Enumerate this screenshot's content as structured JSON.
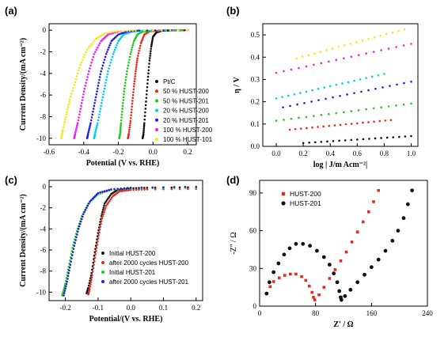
{
  "chart_data": [
    {
      "panel_label": "(a)",
      "type": "scatter",
      "xlabel": "Potential (V vs. RHE)",
      "ylabel": "Current Density/(mA cm⁻²)",
      "xlim": [
        -0.6,
        0.25
      ],
      "ylim": [
        -10.6,
        0.6
      ],
      "xticks": [
        "-0.6",
        "-0.4",
        "-0.2",
        "0.0",
        "0.2"
      ],
      "yticks": [
        "0",
        "-2",
        "-4",
        "-6",
        "-8",
        "-10"
      ],
      "legend": "right",
      "series": [
        {
          "name": "Pt/C",
          "color": "#111111",
          "values": [
            [
              0.2,
              0.0
            ],
            [
              0.1,
              -0.02
            ],
            [
              0.05,
              -0.05
            ],
            [
              0.02,
              -0.2
            ],
            [
              0.0,
              -0.6
            ],
            [
              -0.01,
              -1.5
            ],
            [
              -0.02,
              -2.8
            ],
            [
              -0.03,
              -4.6
            ],
            [
              -0.04,
              -6.6
            ],
            [
              -0.05,
              -8.6
            ],
            [
              -0.055,
              -9.6
            ],
            [
              -0.06,
              -10.0
            ]
          ]
        },
        {
          "name": "50 % HUST-200",
          "color": "#e8281e",
          "values": [
            [
              0.2,
              0.0
            ],
            [
              0.05,
              -0.03
            ],
            [
              -0.02,
              -0.1
            ],
            [
              -0.05,
              -0.4
            ],
            [
              -0.07,
              -1.2
            ],
            [
              -0.09,
              -2.6
            ],
            [
              -0.1,
              -3.8
            ],
            [
              -0.11,
              -5.2
            ],
            [
              -0.12,
              -6.8
            ],
            [
              -0.13,
              -8.4
            ],
            [
              -0.14,
              -9.6
            ],
            [
              -0.145,
              -10.0
            ]
          ]
        },
        {
          "name": "50 % HUST-201",
          "color": "#1ec81e",
          "values": [
            [
              0.2,
              0.0
            ],
            [
              0.0,
              -0.03
            ],
            [
              -0.06,
              -0.12
            ],
            [
              -0.09,
              -0.4
            ],
            [
              -0.11,
              -1.0
            ],
            [
              -0.13,
              -2.2
            ],
            [
              -0.15,
              -3.8
            ],
            [
              -0.165,
              -5.4
            ],
            [
              -0.175,
              -7.0
            ],
            [
              -0.185,
              -8.6
            ],
            [
              -0.19,
              -9.6
            ],
            [
              -0.195,
              -10.0
            ]
          ]
        },
        {
          "name": "20 % HUST-200",
          "color": "#00d0e6",
          "values": [
            [
              0.2,
              0.0
            ],
            [
              -0.05,
              -0.03
            ],
            [
              -0.12,
              -0.12
            ],
            [
              -0.17,
              -0.4
            ],
            [
              -0.2,
              -1.0
            ],
            [
              -0.23,
              -2.2
            ],
            [
              -0.26,
              -3.8
            ],
            [
              -0.28,
              -5.4
            ],
            [
              -0.3,
              -7.0
            ],
            [
              -0.32,
              -8.6
            ],
            [
              -0.335,
              -9.6
            ],
            [
              -0.34,
              -10.0
            ]
          ]
        },
        {
          "name": "20 % HUST-201",
          "color": "#2020d8",
          "values": [
            [
              0.2,
              0.0
            ],
            [
              -0.08,
              -0.03
            ],
            [
              -0.15,
              -0.12
            ],
            [
              -0.2,
              -0.4
            ],
            [
              -0.24,
              -1.0
            ],
            [
              -0.27,
              -2.2
            ],
            [
              -0.3,
              -3.8
            ],
            [
              -0.32,
              -5.4
            ],
            [
              -0.34,
              -7.0
            ],
            [
              -0.36,
              -8.6
            ],
            [
              -0.375,
              -9.6
            ],
            [
              -0.38,
              -10.0
            ]
          ]
        },
        {
          "name": "100 % HUST-200",
          "color": "#f020f0",
          "values": [
            [
              0.2,
              0.0
            ],
            [
              -0.1,
              -0.03
            ],
            [
              -0.2,
              -0.12
            ],
            [
              -0.26,
              -0.4
            ],
            [
              -0.3,
              -1.0
            ],
            [
              -0.34,
              -2.2
            ],
            [
              -0.37,
              -3.8
            ],
            [
              -0.395,
              -5.4
            ],
            [
              -0.415,
              -7.0
            ],
            [
              -0.435,
              -8.6
            ],
            [
              -0.45,
              -9.6
            ],
            [
              -0.455,
              -10.0
            ]
          ]
        },
        {
          "name": "100 % HUST-101",
          "color": "#f5e61e",
          "values": [
            [
              0.2,
              0.0
            ],
            [
              -0.1,
              -0.02
            ],
            [
              -0.2,
              -0.08
            ],
            [
              -0.28,
              -0.3
            ],
            [
              -0.33,
              -0.8
            ],
            [
              -0.38,
              -1.8
            ],
            [
              -0.42,
              -3.2
            ],
            [
              -0.45,
              -4.8
            ],
            [
              -0.48,
              -6.4
            ],
            [
              -0.5,
              -7.8
            ],
            [
              -0.52,
              -9.2
            ],
            [
              -0.53,
              -10.0
            ]
          ]
        }
      ]
    },
    {
      "panel_label": "(b)",
      "type": "scatter",
      "xlabel": "log | J/m Acm⁻²|",
      "ylabel": "η / V",
      "xlim": [
        -0.1,
        1.05
      ],
      "ylim": [
        0.0,
        0.55
      ],
      "xticks": [
        "0.0",
        "0.2",
        "0.4",
        "0.6",
        "0.8",
        "1.0"
      ],
      "yticks": [
        "0.0",
        "0.1",
        "0.2",
        "0.3",
        "0.4",
        "0.5"
      ],
      "series": [
        {
          "color": "#f5e61e",
          "values": [
            [
              0.15,
              0.395
            ],
            [
              0.95,
              0.525
            ]
          ]
        },
        {
          "color": "#f020f0",
          "values": [
            [
              0.0,
              0.33
            ],
            [
              1.0,
              0.46
            ]
          ]
        },
        {
          "color": "#00d0e6",
          "values": [
            [
              0.0,
              0.215
            ],
            [
              0.8,
              0.325
            ]
          ]
        },
        {
          "color": "#2020d8",
          "values": [
            [
              0.05,
              0.175
            ],
            [
              1.0,
              0.29
            ]
          ]
        },
        {
          "color": "#1ec81e",
          "values": [
            [
              0.0,
              0.115
            ],
            [
              1.0,
              0.192
            ]
          ]
        },
        {
          "color": "#e8281e",
          "values": [
            [
              0.1,
              0.075
            ],
            [
              0.85,
              0.118
            ]
          ]
        },
        {
          "color": "#111111",
          "values": [
            [
              0.2,
              0.015
            ],
            [
              1.0,
              0.046
            ]
          ]
        }
      ]
    },
    {
      "panel_label": "(c)",
      "type": "scatter",
      "xlabel": "Potential/(V vs. RHE)",
      "ylabel": "Current Density/(mA cm⁻²)",
      "xlim": [
        -0.25,
        0.22
      ],
      "ylim": [
        -10.8,
        0.6
      ],
      "xticks": [
        "-0.2",
        "-0.1",
        "0.0",
        "0.1",
        "0.2"
      ],
      "yticks": [
        "0",
        "-2",
        "-4",
        "-6",
        "-8",
        "-10"
      ],
      "legend": "bottom-right",
      "series": [
        {
          "name": "Initial HUST-200",
          "color": "#111111",
          "values": [
            [
              0.2,
              -0.05
            ],
            [
              0.05,
              -0.1
            ],
            [
              0.0,
              -0.15
            ],
            [
              -0.04,
              -0.3
            ],
            [
              -0.06,
              -0.7
            ],
            [
              -0.08,
              -1.6
            ],
            [
              -0.09,
              -2.8
            ],
            [
              -0.1,
              -4.4
            ],
            [
              -0.11,
              -6.2
            ],
            [
              -0.12,
              -8.2
            ],
            [
              -0.13,
              -9.6
            ],
            [
              -0.135,
              -10.1
            ]
          ]
        },
        {
          "name": "after 2000 cycles HUST-200",
          "color": "#e8281e",
          "values": [
            [
              0.2,
              -0.2
            ],
            [
              0.05,
              -0.25
            ],
            [
              0.0,
              -0.3
            ],
            [
              -0.035,
              -0.45
            ],
            [
              -0.055,
              -0.9
            ],
            [
              -0.075,
              -1.8
            ],
            [
              -0.088,
              -3.0
            ],
            [
              -0.098,
              -4.6
            ],
            [
              -0.108,
              -6.4
            ],
            [
              -0.118,
              -8.4
            ],
            [
              -0.126,
              -9.7
            ],
            [
              -0.13,
              -10.2
            ]
          ]
        },
        {
          "name": "Initial HUST-201",
          "color": "#1ec81e",
          "values": [
            [
              0.2,
              -0.1
            ],
            [
              0.0,
              -0.15
            ],
            [
              -0.06,
              -0.3
            ],
            [
              -0.1,
              -0.7
            ],
            [
              -0.13,
              -1.6
            ],
            [
              -0.15,
              -2.8
            ],
            [
              -0.165,
              -4.2
            ],
            [
              -0.178,
              -5.8
            ],
            [
              -0.19,
              -7.6
            ],
            [
              -0.2,
              -9.2
            ],
            [
              -0.21,
              -10.3
            ]
          ]
        },
        {
          "name": "after 2000 cycles HUST-201",
          "color": "#2020d8",
          "values": [
            [
              0.2,
              0.0
            ],
            [
              0.0,
              -0.1
            ],
            [
              -0.06,
              -0.25
            ],
            [
              -0.1,
              -0.6
            ],
            [
              -0.125,
              -1.4
            ],
            [
              -0.145,
              -2.6
            ],
            [
              -0.16,
              -4.0
            ],
            [
              -0.173,
              -5.6
            ],
            [
              -0.185,
              -7.4
            ],
            [
              -0.195,
              -9.0
            ],
            [
              -0.205,
              -10.3
            ]
          ]
        }
      ]
    },
    {
      "panel_label": "(d)",
      "type": "scatter",
      "xlabel": "Z' / Ω",
      "ylabel": "-Z'' / Ω",
      "xlim": [
        0,
        240
      ],
      "ylim": [
        0,
        100
      ],
      "xticks": [
        "0",
        "80",
        "160",
        "240"
      ],
      "yticks": [
        "0",
        "30",
        "60",
        "90"
      ],
      "legend": "top-left",
      "series": [
        {
          "name": "HUST-200",
          "color": "#e8281e",
          "values": [
            [
              10,
              10
            ],
            [
              15,
              15.5
            ],
            [
              20,
              19.5
            ],
            [
              28,
              22.5
            ],
            [
              36,
              24.5
            ],
            [
              44,
              25.5
            ],
            [
              52,
              25.5
            ],
            [
              60,
              23.5
            ],
            [
              66,
              20.5
            ],
            [
              71,
              16
            ],
            [
              75,
              11
            ],
            [
              77,
              7
            ],
            [
              79,
              5
            ],
            [
              85,
              9
            ],
            [
              92,
              15
            ],
            [
              100,
              22
            ],
            [
              108,
              29
            ],
            [
              116,
              36
            ],
            [
              124,
              43
            ],
            [
              132,
              51
            ],
            [
              140,
              59
            ],
            [
              148,
              67
            ],
            [
              156,
              75
            ],
            [
              163,
              83
            ],
            [
              170,
              92
            ]
          ]
        },
        {
          "name": "HUST-201",
          "color": "#111111",
          "values": [
            [
              10,
              10
            ],
            [
              14,
              19
            ],
            [
              20,
              27
            ],
            [
              27,
              34
            ],
            [
              35,
              41
            ],
            [
              43,
              46
            ],
            [
              52,
              49.5
            ],
            [
              62,
              49.5
            ],
            [
              72,
              48
            ],
            [
              82,
              44
            ],
            [
              92,
              39
            ],
            [
              100,
              33
            ],
            [
              106,
              26
            ],
            [
              111,
              19
            ],
            [
              114,
              12
            ],
            [
              116,
              7
            ],
            [
              117,
              5
            ],
            [
              122,
              8
            ],
            [
              130,
              13
            ],
            [
              140,
              19
            ],
            [
              150,
              25
            ],
            [
              160,
              31
            ],
            [
              170,
              37
            ],
            [
              180,
              44
            ],
            [
              190,
              52
            ],
            [
              198,
              60
            ],
            [
              206,
              70
            ],
            [
              212,
              81
            ],
            [
              218,
              92
            ]
          ]
        }
      ]
    }
  ]
}
